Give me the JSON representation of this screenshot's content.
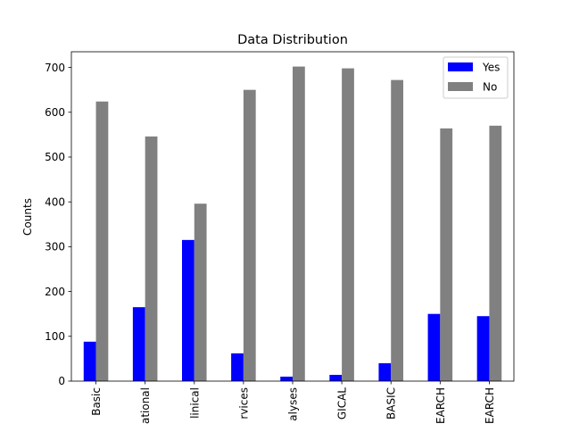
{
  "chart_data": {
    "type": "bar",
    "title": "Data Distribution",
    "xlabel": "",
    "ylabel": "Counts",
    "ylim": [
      0,
      735
    ],
    "yticks": [
      0,
      100,
      200,
      300,
      400,
      500,
      600,
      700
    ],
    "categories": [
      "Basic",
      "ational",
      "linical",
      "rvices",
      "alyses",
      "GICAL",
      "BASIC",
      "EARCH",
      "EARCH"
    ],
    "series": [
      {
        "name": "Yes",
        "color": "#0000ff",
        "values": [
          88,
          165,
          315,
          62,
          10,
          14,
          40,
          150,
          145
        ]
      },
      {
        "name": "No",
        "color": "#808080",
        "values": [
          624,
          546,
          396,
          650,
          702,
          698,
          672,
          564,
          570
        ]
      }
    ],
    "legend": {
      "position": "top-right"
    },
    "grid": false
  }
}
